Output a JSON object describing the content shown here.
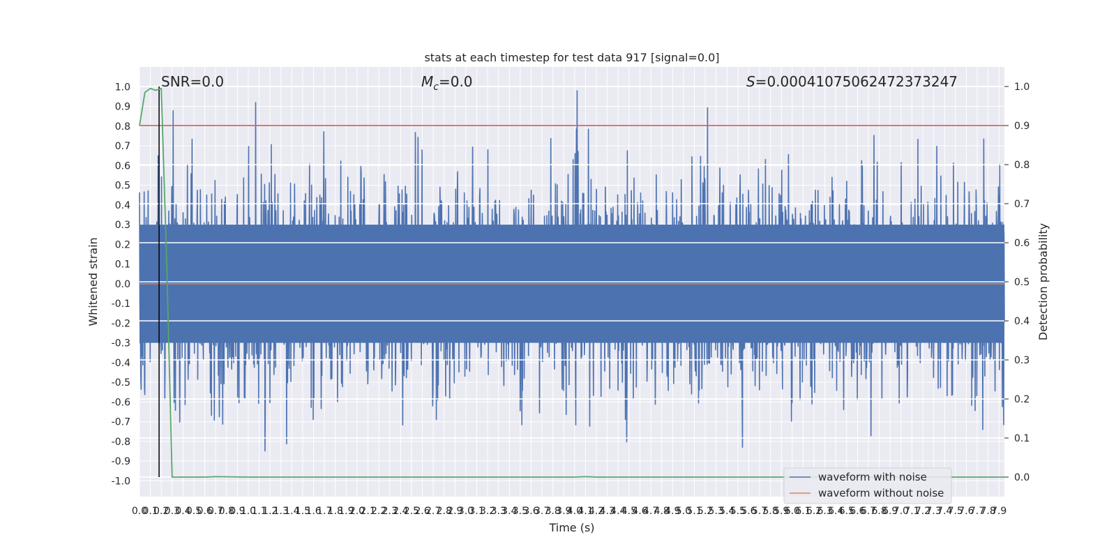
{
  "chart_data": {
    "type": "line",
    "title": "stats at each timestep for test data 917 [signal=0.0]",
    "xlabel": "Time (s)",
    "ylabel_left": "Whitened strain",
    "ylabel_right": "Detection probability",
    "xlim": [
      0.0,
      7.95
    ],
    "ylim_left": [
      -1.08,
      1.1
    ],
    "ylim_right": [
      -0.05,
      1.05
    ],
    "x_ticks": [
      0.0,
      0.1,
      0.2,
      0.3,
      0.4,
      0.5,
      0.6,
      0.7,
      0.8,
      0.9,
      1.0,
      1.1,
      1.2,
      1.3,
      1.4,
      1.5,
      1.6,
      1.7,
      1.8,
      1.9,
      2.0,
      2.1,
      2.2,
      2.3,
      2.4,
      2.5,
      2.6,
      2.7,
      2.8,
      2.9,
      3.0,
      3.1,
      3.2,
      3.3,
      3.4,
      3.5,
      3.6,
      3.7,
      3.8,
      3.9,
      4.0,
      4.1,
      4.2,
      4.3,
      4.4,
      4.5,
      4.6,
      4.7,
      4.8,
      4.9,
      5.0,
      5.1,
      5.2,
      5.3,
      5.4,
      5.5,
      5.6,
      5.7,
      5.8,
      5.9,
      6.0,
      6.1,
      6.2,
      6.3,
      6.4,
      6.5,
      6.6,
      6.7,
      6.8,
      6.9,
      7.0,
      7.1,
      7.2,
      7.3,
      7.4,
      7.5,
      7.6,
      7.7,
      7.8,
      7.9
    ],
    "y_ticks_left": [
      "1.0",
      "0.9",
      "0.8",
      "0.7",
      "0.6",
      "0.5",
      "0.4",
      "0.3",
      "0.2",
      "0.1",
      "0.0",
      "-0.1",
      "-0.2",
      "-0.3",
      "-0.4",
      "-0.5",
      "-0.6",
      "-0.7",
      "-0.8",
      "-0.9",
      "-1.0"
    ],
    "y_ticks_right": [
      "1.0",
      "0.9",
      "0.8",
      "0.7",
      "0.6",
      "0.5",
      "0.4",
      "0.3",
      "0.2",
      "0.1",
      "0.0"
    ],
    "annotations": {
      "snr": "SNR=0.0",
      "mc_symbol": "M",
      "mc_sub": "c",
      "mc_value": "=0.0",
      "s_symbol": "S",
      "s_value": "=0.00041075062472373247"
    },
    "series": [
      {
        "name": "waveform with noise",
        "color": "#4c72b0",
        "axis": "left",
        "description_values": "dense noise, roughly within [-1.0, 1.0]"
      },
      {
        "name": "waveform without noise",
        "color": "#dd8452",
        "axis": "left",
        "x": [
          0.0,
          7.95
        ],
        "y": [
          0.0,
          0.0
        ]
      },
      {
        "name": "detection probability",
        "color": "#55a868",
        "axis": "right",
        "x": [
          0.0,
          0.05,
          0.1,
          0.15,
          0.2,
          0.25,
          0.3,
          0.35,
          0.45,
          0.6,
          0.7,
          1.0,
          2.0,
          3.0,
          4.0,
          4.1,
          4.2,
          5.0,
          6.0,
          7.0,
          7.95
        ],
        "y": [
          0.9,
          0.985,
          0.995,
          0.99,
          0.995,
          0.55,
          0.0,
          0.0,
          0.0,
          0.0,
          0.001,
          0.0,
          0.0,
          0.0,
          0.0,
          0.001,
          0.0,
          0.0,
          0.0,
          0.0,
          0.0
        ]
      }
    ],
    "hlines": [
      {
        "y_right": 0.9,
        "color": "#c44e52"
      }
    ],
    "vlines": [
      {
        "x": 0.18,
        "color": "#000000"
      }
    ],
    "legend_placement": "lower-right",
    "grid": true
  }
}
